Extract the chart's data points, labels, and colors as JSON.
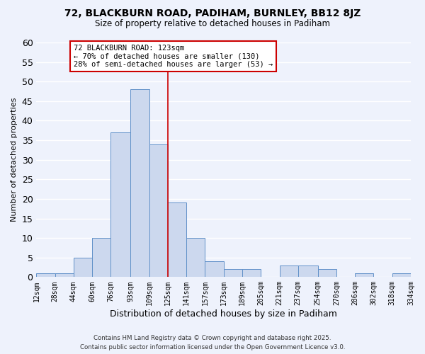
{
  "title": "72, BLACKBURN ROAD, PADIHAM, BURNLEY, BB12 8JZ",
  "subtitle": "Size of property relative to detached houses in Padiham",
  "xlabel": "Distribution of detached houses by size in Padiham",
  "ylabel": "Number of detached properties",
  "bin_labels": [
    "12sqm",
    "28sqm",
    "44sqm",
    "60sqm",
    "76sqm",
    "93sqm",
    "109sqm",
    "125sqm",
    "141sqm",
    "157sqm",
    "173sqm",
    "189sqm",
    "205sqm",
    "221sqm",
    "237sqm",
    "254sqm",
    "270sqm",
    "286sqm",
    "302sqm",
    "318sqm",
    "334sqm"
  ],
  "bin_edges": [
    12,
    28,
    44,
    60,
    76,
    93,
    109,
    125,
    141,
    157,
    173,
    189,
    205,
    221,
    237,
    254,
    270,
    286,
    302,
    318,
    334
  ],
  "bar_values": [
    1,
    1,
    5,
    10,
    37,
    48,
    34,
    19,
    10,
    4,
    2,
    2,
    0,
    3,
    3,
    2,
    0,
    1,
    0,
    1
  ],
  "bar_color": "#ccd8ee",
  "bar_edgecolor": "#6090c8",
  "vline_x": 125,
  "vline_color": "#cc0000",
  "annotation_title": "72 BLACKBURN ROAD: 123sqm",
  "annotation_line1": "← 70% of detached houses are smaller (130)",
  "annotation_line2": "28% of semi-detached houses are larger (53) →",
  "annotation_box_facecolor": "#ffffff",
  "annotation_box_edgecolor": "#cc0000",
  "ylim": [
    0,
    60
  ],
  "yticks": [
    0,
    5,
    10,
    15,
    20,
    25,
    30,
    35,
    40,
    45,
    50,
    55,
    60
  ],
  "footer1": "Contains HM Land Registry data © Crown copyright and database right 2025.",
  "footer2": "Contains public sector information licensed under the Open Government Licence v3.0.",
  "background_color": "#eef2fc",
  "grid_color": "#ffffff"
}
